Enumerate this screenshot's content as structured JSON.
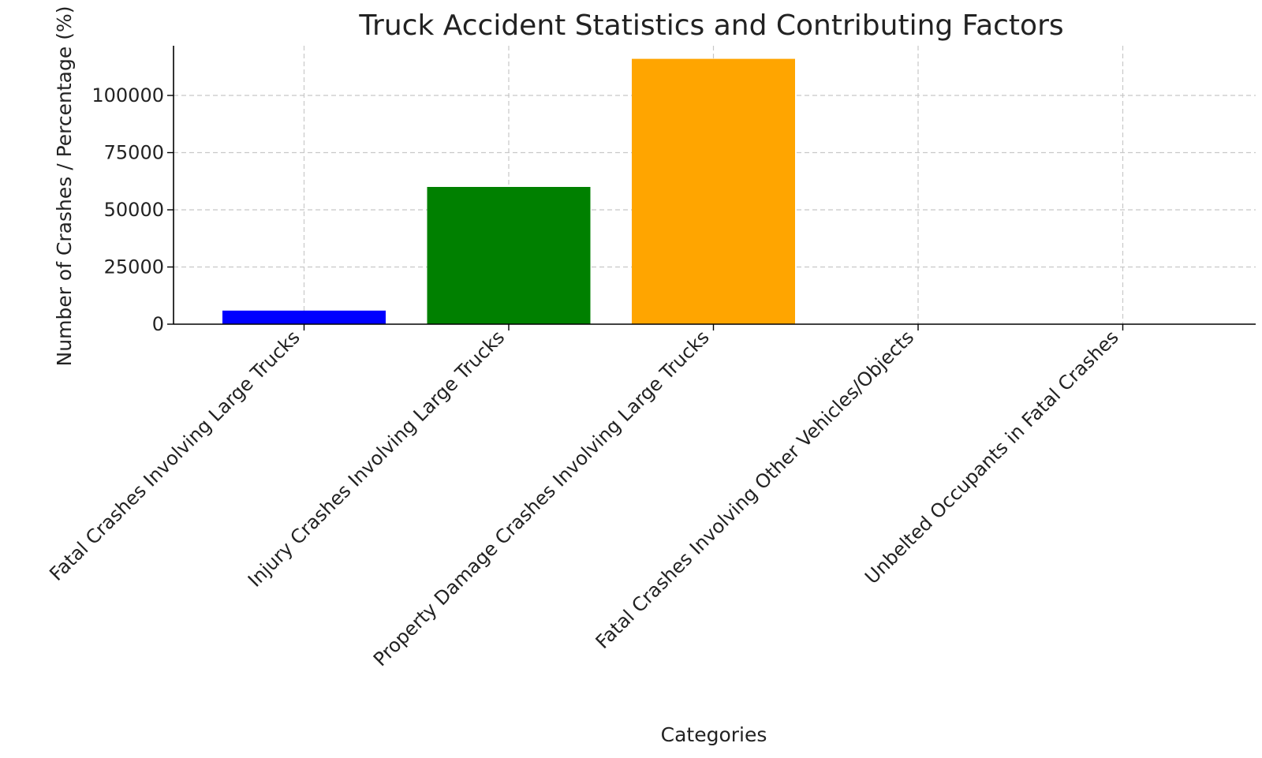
{
  "chart_data": {
    "type": "bar",
    "title": "Truck Accident Statistics and Contributing Factors",
    "xlabel": "Categories",
    "ylabel": "Number of Crashes / Percentage (%)",
    "categories": [
      "Fatal Crashes Involving Large Trucks",
      "Injury Crashes Involving Large Trucks",
      "Property Damage Crashes Involving Large Trucks",
      "Fatal Crashes Involving Other Vehicles/Objects",
      "Unbelted Occupants in Fatal Crashes"
    ],
    "values": [
      5936,
      60000,
      116000,
      73,
      40
    ],
    "colors": [
      "#0000ff",
      "#008000",
      "#ffa500",
      "#ff0000",
      "#800080"
    ],
    "ylim": [
      0,
      120000
    ],
    "yticks": [
      0,
      25000,
      50000,
      75000,
      100000
    ],
    "ytick_labels": [
      "0",
      "25000",
      "50000",
      "75000",
      "100000"
    ],
    "grid": true
  }
}
